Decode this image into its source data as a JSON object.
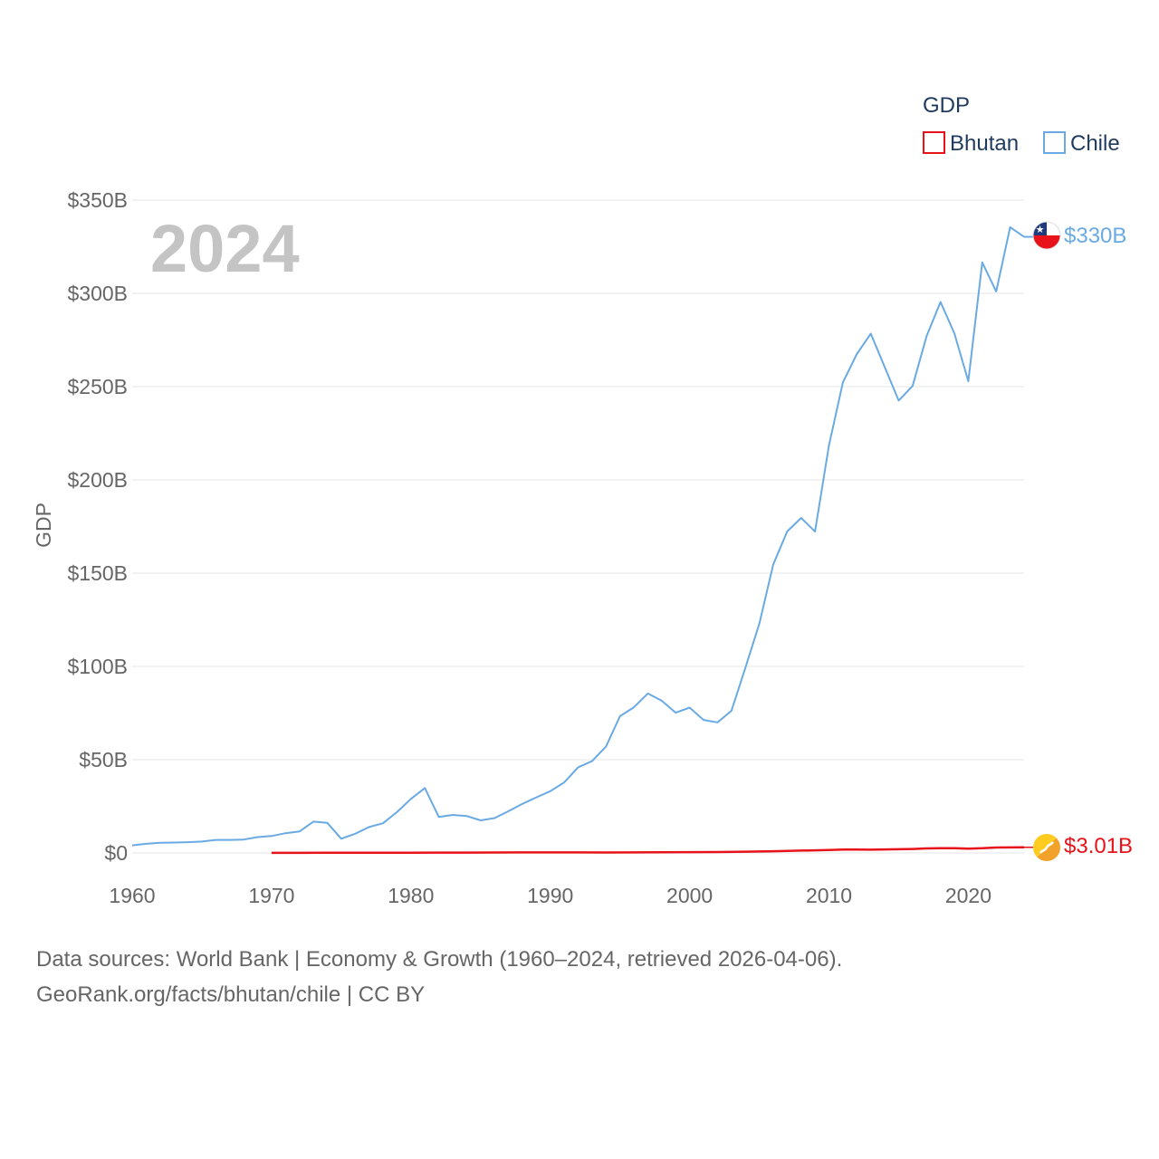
{
  "chart_data": {
    "type": "line",
    "title": "",
    "xlabel": "",
    "ylabel": "GDP",
    "highlight_year": "2024",
    "xlim": [
      1960,
      2024
    ],
    "ylim": [
      0,
      350
    ],
    "x_ticks": [
      1960,
      1970,
      1980,
      1990,
      2000,
      2010,
      2020
    ],
    "x_tick_labels": [
      "1960",
      "1970",
      "1980",
      "1990",
      "2000",
      "2010",
      "2020"
    ],
    "y_ticks": [
      0,
      50,
      100,
      150,
      200,
      250,
      300,
      350
    ],
    "y_tick_labels": [
      "$0",
      "$50B",
      "$100B",
      "$150B",
      "$200B",
      "$250B",
      "$300B",
      "$350B"
    ],
    "grid": true,
    "legend": {
      "title": "GDP",
      "position": "top-right",
      "entries": [
        "Bhutan",
        "Chile"
      ]
    },
    "units": "billions USD",
    "series": [
      {
        "name": "Bhutan",
        "color": "#e8131a",
        "end_label": "$3.01B",
        "flag_icon": "bhutan-flag-icon",
        "x": [
          1970,
          1972,
          1974,
          1976,
          1978,
          1980,
          1982,
          1984,
          1986,
          1988,
          1990,
          1992,
          1994,
          1996,
          1998,
          2000,
          2002,
          2004,
          2006,
          2008,
          2010,
          2011,
          2012,
          2013,
          2014,
          2015,
          2016,
          2017,
          2018,
          2019,
          2020,
          2021,
          2022,
          2023,
          2024
        ],
        "values": [
          0.05,
          0.06,
          0.08,
          0.1,
          0.12,
          0.14,
          0.17,
          0.2,
          0.25,
          0.3,
          0.31,
          0.27,
          0.25,
          0.3,
          0.36,
          0.44,
          0.5,
          0.7,
          0.9,
          1.25,
          1.55,
          1.82,
          1.82,
          1.76,
          1.9,
          2.0,
          2.16,
          2.45,
          2.55,
          2.55,
          2.33,
          2.54,
          2.9,
          2.98,
          3.01
        ]
      },
      {
        "name": "Chile",
        "color": "#6aaae4",
        "end_label": "$330B",
        "flag_icon": "chile-flag-icon",
        "x": [
          1960,
          1961,
          1962,
          1963,
          1964,
          1965,
          1966,
          1967,
          1968,
          1969,
          1970,
          1971,
          1972,
          1973,
          1974,
          1975,
          1976,
          1977,
          1978,
          1979,
          1980,
          1981,
          1982,
          1983,
          1984,
          1985,
          1986,
          1987,
          1988,
          1989,
          1990,
          1991,
          1992,
          1993,
          1994,
          1995,
          1996,
          1997,
          1998,
          1999,
          2000,
          2001,
          2002,
          2003,
          2004,
          2005,
          2006,
          2007,
          2008,
          2009,
          2010,
          2011,
          2012,
          2013,
          2014,
          2015,
          2016,
          2017,
          2018,
          2019,
          2020,
          2021,
          2022,
          2023,
          2024
        ],
        "values": [
          4.1,
          4.9,
          5.5,
          5.6,
          5.8,
          6.1,
          7.0,
          7.0,
          7.2,
          8.5,
          9.1,
          10.6,
          11.5,
          16.8,
          16.1,
          7.6,
          10.3,
          13.9,
          15.9,
          21.9,
          29.0,
          34.8,
          19.3,
          20.4,
          19.8,
          17.5,
          18.7,
          22.4,
          26.3,
          29.8,
          33.1,
          37.8,
          45.9,
          49.2,
          57.1,
          73.3,
          78.1,
          85.5,
          81.6,
          75.2,
          77.9,
          71.3,
          70.0,
          76.2,
          99.2,
          122.9,
          154.7,
          172.4,
          179.6,
          172.3,
          218.5,
          252.3,
          267.5,
          278.4,
          260.5,
          242.5,
          250.4,
          277.0,
          295.4,
          278.6,
          252.9,
          316.6,
          301.0,
          335.5,
          330.3
        ]
      }
    ]
  },
  "footer": {
    "line1": "Data sources: World Bank | Economy & Growth (1960–2024, retrieved 2026-04-06).",
    "line2": "GeoRank.org/facts/bhutan/chile | CC BY"
  }
}
